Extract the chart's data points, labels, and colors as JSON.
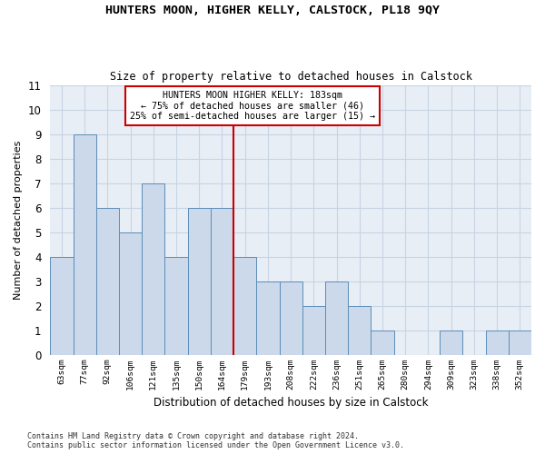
{
  "title": "HUNTERS MOON, HIGHER KELLY, CALSTOCK, PL18 9QY",
  "subtitle": "Size of property relative to detached houses in Calstock",
  "xlabel": "Distribution of detached houses by size in Calstock",
  "ylabel": "Number of detached properties",
  "categories": [
    "63sqm",
    "77sqm",
    "92sqm",
    "106sqm",
    "121sqm",
    "135sqm",
    "150sqm",
    "164sqm",
    "179sqm",
    "193sqm",
    "208sqm",
    "222sqm",
    "236sqm",
    "251sqm",
    "265sqm",
    "280sqm",
    "294sqm",
    "309sqm",
    "323sqm",
    "338sqm",
    "352sqm"
  ],
  "values": [
    4,
    9,
    6,
    5,
    7,
    4,
    6,
    6,
    4,
    3,
    3,
    2,
    3,
    2,
    1,
    0,
    0,
    1,
    0,
    1,
    1
  ],
  "bar_color": "#ccd9ea",
  "bar_edge_color": "#5b8db8",
  "grid_color": "#c8d4e3",
  "bg_color": "#e8eef5",
  "vline_color": "#cc0000",
  "vline_index": 8,
  "annotation_text": "HUNTERS MOON HIGHER KELLY: 183sqm\n← 75% of detached houses are smaller (46)\n25% of semi-detached houses are larger (15) →",
  "annotation_box_color": "#cc0000",
  "ylim": [
    0,
    11
  ],
  "yticks": [
    0,
    1,
    2,
    3,
    4,
    5,
    6,
    7,
    8,
    9,
    10,
    11
  ],
  "footnote1": "Contains HM Land Registry data © Crown copyright and database right 2024.",
  "footnote2": "Contains public sector information licensed under the Open Government Licence v3.0."
}
